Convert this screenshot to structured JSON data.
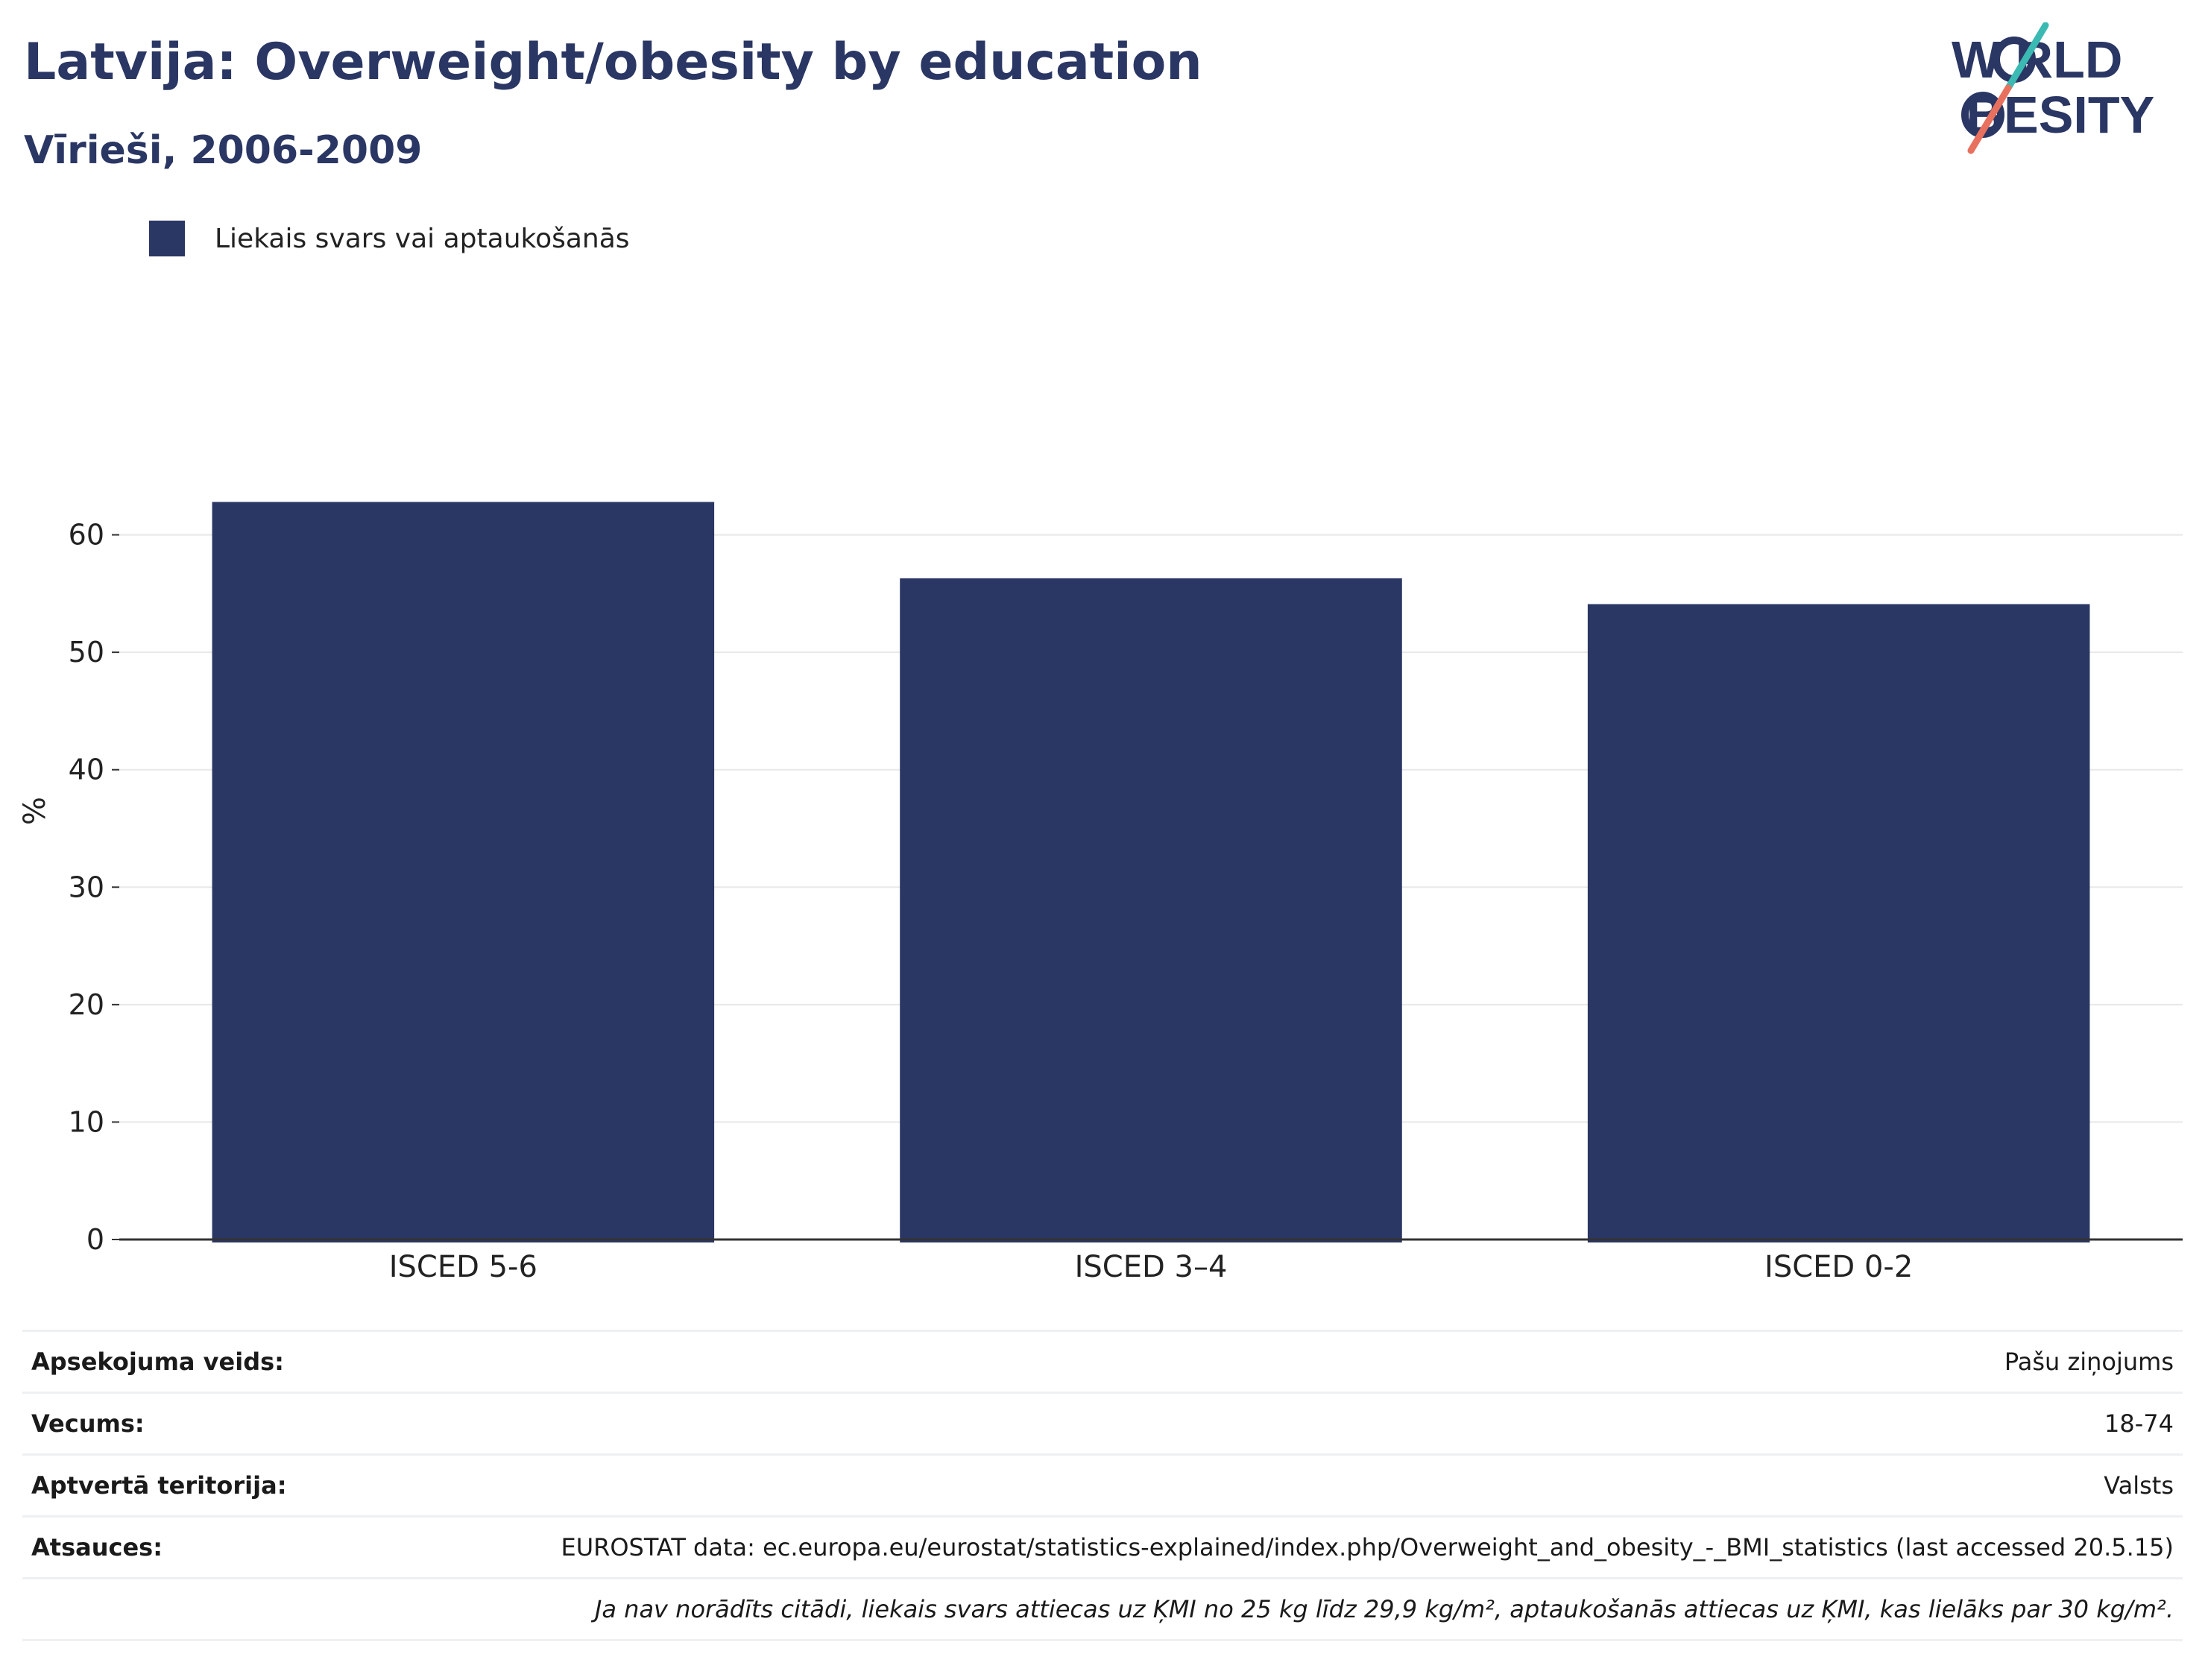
{
  "header": {
    "title": "Latvija: Overweight/obesity by education",
    "subtitle": "Vīrieši, 2006-2009"
  },
  "logo": {
    "line1": "W RLD",
    "line2": " BESITY",
    "colors": {
      "text": "#2a3663",
      "slash_top": "#3bb9b3",
      "slash_bottom": "#e8705e"
    }
  },
  "legend": {
    "label": "Liekais svars vai aptaukošanās"
  },
  "colors": {
    "bar": "#2a3663",
    "grid": "#e8e8e8",
    "axis": "#333333"
  },
  "chart_data": {
    "type": "bar",
    "categories": [
      "ISCED 5-6",
      "ISCED 3–4",
      "ISCED 0-2"
    ],
    "series": [
      {
        "name": "Liekais svars vai aptaukošanās",
        "values": [
          62.8,
          56.3,
          54.1
        ]
      }
    ],
    "ylabel": "%",
    "ylim": [
      0,
      70
    ],
    "yticks": [
      0,
      10,
      20,
      30,
      40,
      50,
      60
    ],
    "grid": true,
    "legend_position": "top-left"
  },
  "info": {
    "rows": [
      {
        "key": "Apsekojuma veids:",
        "value": "Pašu ziņojums"
      },
      {
        "key": "Vecums:",
        "value": "18-74"
      },
      {
        "key": "Aptvertā teritorija:",
        "value": "Valsts"
      },
      {
        "key": "Atsauces:",
        "value": "EUROSTAT data: ec.europa.eu/eurostat/statistics-explained/index.php/Overweight_and_obesity_-_BMI_statistics (last accessed 20.5.15)"
      }
    ],
    "note": "Ja nav norādīts citādi, liekais svars attiecas uz ĶMI no 25 kg līdz 29,9 kg/m², aptaukošanās attiecas uz ĶMI, kas lielāks par 30 kg/m²."
  }
}
